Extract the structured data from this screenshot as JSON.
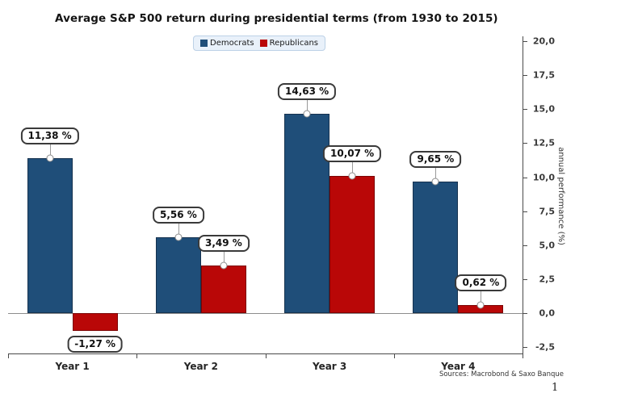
{
  "page": {
    "page_number": "1"
  },
  "chart_data": {
    "type": "bar",
    "title": "Average S&P 500 return during presidential terms (from 1930 to 2015)",
    "categories": [
      "Year 1",
      "Year 2",
      "Year 3",
      "Year 4"
    ],
    "series": [
      {
        "name": "Democrats",
        "color": "#1F4E79",
        "border_color": "#16324F",
        "values": [
          11.38,
          5.56,
          14.63,
          9.65
        ],
        "data_labels": [
          "11,38 %",
          "5,56 %",
          "14,63 %",
          "9,65 %"
        ]
      },
      {
        "name": "Republicans",
        "color": "#B90707",
        "border_color": "#7C0404",
        "values": [
          -1.27,
          3.49,
          10.07,
          0.62
        ],
        "data_labels": [
          "-1,27 %",
          "3,49 %",
          "10,07 %",
          "0,62 %"
        ]
      }
    ],
    "xlabel": "",
    "ylabel": "annual performance (%)",
    "yticks": [
      20.0,
      17.5,
      15.0,
      12.5,
      10.0,
      7.5,
      5.0,
      2.5,
      0.0,
      -2.5
    ],
    "ytick_labels": [
      "20,0",
      "17,5",
      "15,0",
      "12,5",
      "10,0",
      "7,5",
      "5,0",
      "2,5",
      "0,0",
      "-2,5"
    ],
    "ylim": [
      -2.95,
      20.35
    ],
    "yaxis_side": "right",
    "legend_position": "top-center",
    "grid": false,
    "source": "Sources: Macrobond & Saxo Banque"
  }
}
